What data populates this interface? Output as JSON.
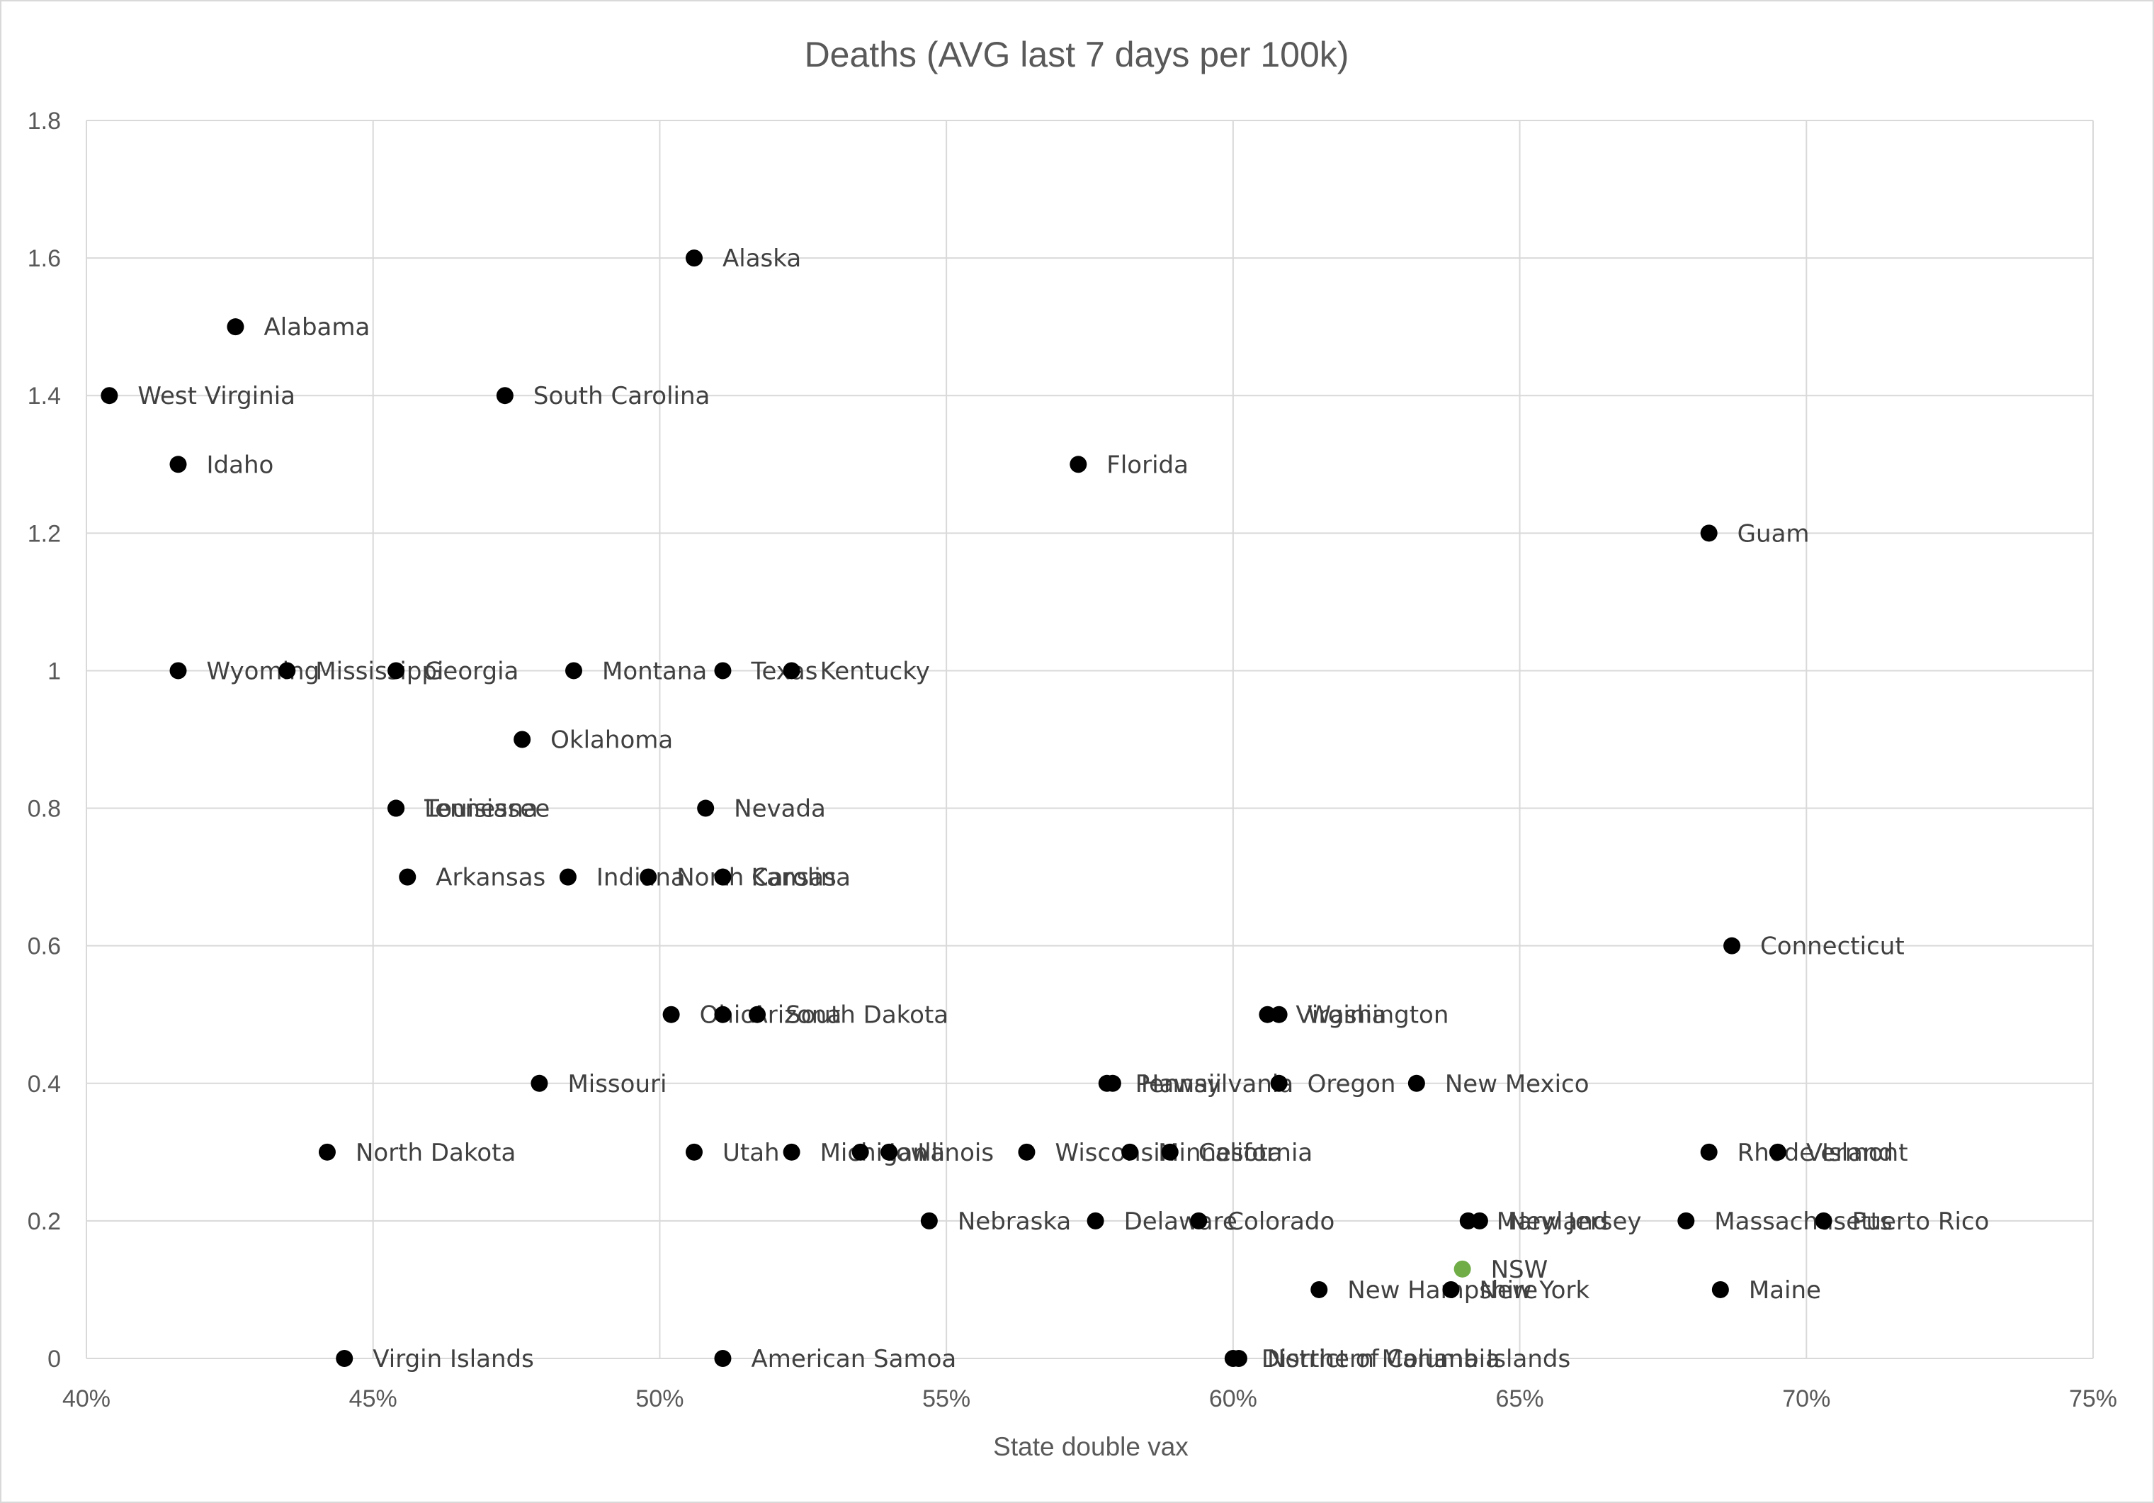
{
  "chart_data": {
    "type": "scatter",
    "title": "Deaths (AVG last 7 days per 100k)",
    "xlabel": "State double vax",
    "ylabel": "",
    "xlim": [
      0.4,
      0.75
    ],
    "ylim": [
      0,
      1.8
    ],
    "x_ticks": [
      0.4,
      0.45,
      0.5,
      0.55,
      0.6,
      0.65,
      0.7,
      0.75
    ],
    "x_tick_labels": [
      "40%",
      "45%",
      "50%",
      "55%",
      "60%",
      "65%",
      "70%",
      "75%"
    ],
    "y_ticks": [
      0,
      0.2,
      0.4,
      0.6,
      0.8,
      1.0,
      1.2,
      1.4,
      1.6,
      1.8
    ],
    "y_tick_labels": [
      "0",
      "0.2",
      "0.4",
      "0.6",
      "0.8",
      "1",
      "1.2",
      "1.4",
      "1.6",
      "1.8"
    ],
    "grid": true,
    "colors": {
      "default": "#000000",
      "highlight": "#70ad47"
    },
    "points": [
      {
        "label": "Alaska",
        "x": 0.506,
        "y": 1.6
      },
      {
        "label": "Alabama",
        "x": 0.426,
        "y": 1.5
      },
      {
        "label": "West Virginia",
        "x": 0.404,
        "y": 1.4
      },
      {
        "label": "South Carolina",
        "x": 0.473,
        "y": 1.4
      },
      {
        "label": "Idaho",
        "x": 0.416,
        "y": 1.3
      },
      {
        "label": "Florida",
        "x": 0.573,
        "y": 1.3
      },
      {
        "label": "Guam",
        "x": 0.683,
        "y": 1.2
      },
      {
        "label": "Wyoming",
        "x": 0.416,
        "y": 1.0
      },
      {
        "label": "Mississippi",
        "x": 0.435,
        "y": 1.0
      },
      {
        "label": "Georgia",
        "x": 0.454,
        "y": 1.0
      },
      {
        "label": "Montana",
        "x": 0.485,
        "y": 1.0
      },
      {
        "label": "Texas",
        "x": 0.511,
        "y": 1.0
      },
      {
        "label": "Kentucky",
        "x": 0.523,
        "y": 1.0
      },
      {
        "label": "Oklahoma",
        "x": 0.476,
        "y": 0.9
      },
      {
        "label": "Tennessee",
        "x": 0.454,
        "y": 0.8
      },
      {
        "label": "Louisiana",
        "x": 0.454,
        "y": 0.8
      },
      {
        "label": "Nevada",
        "x": 0.508,
        "y": 0.8
      },
      {
        "label": "Arkansas",
        "x": 0.456,
        "y": 0.7
      },
      {
        "label": "Indiana",
        "x": 0.484,
        "y": 0.7
      },
      {
        "label": "North Carolina",
        "x": 0.498,
        "y": 0.7
      },
      {
        "label": "Kansas",
        "x": 0.511,
        "y": 0.7
      },
      {
        "label": "Connecticut",
        "x": 0.687,
        "y": 0.6
      },
      {
        "label": "Ohio",
        "x": 0.502,
        "y": 0.5
      },
      {
        "label": "Arizona",
        "x": 0.511,
        "y": 0.5
      },
      {
        "label": "South Dakota",
        "x": 0.517,
        "y": 0.5
      },
      {
        "label": "Virginia",
        "x": 0.606,
        "y": 0.5
      },
      {
        "label": "Washington",
        "x": 0.608,
        "y": 0.5
      },
      {
        "label": "Missouri",
        "x": 0.479,
        "y": 0.4
      },
      {
        "label": "Pennsylvania",
        "x": 0.578,
        "y": 0.4
      },
      {
        "label": "Hawaii",
        "x": 0.579,
        "y": 0.4
      },
      {
        "label": "Oregon",
        "x": 0.608,
        "y": 0.4
      },
      {
        "label": "New Mexico",
        "x": 0.632,
        "y": 0.4
      },
      {
        "label": "North Dakota",
        "x": 0.442,
        "y": 0.3
      },
      {
        "label": "Utah",
        "x": 0.506,
        "y": 0.3
      },
      {
        "label": "Michigan",
        "x": 0.523,
        "y": 0.3
      },
      {
        "label": "Iowa",
        "x": 0.535,
        "y": 0.3
      },
      {
        "label": "Illinois",
        "x": 0.54,
        "y": 0.3
      },
      {
        "label": "Wisconsin",
        "x": 0.564,
        "y": 0.3
      },
      {
        "label": "Minnesota",
        "x": 0.582,
        "y": 0.3
      },
      {
        "label": "California",
        "x": 0.589,
        "y": 0.3
      },
      {
        "label": "Rhode Island",
        "x": 0.683,
        "y": 0.3
      },
      {
        "label": "Vermont",
        "x": 0.695,
        "y": 0.3
      },
      {
        "label": "Nebraska",
        "x": 0.547,
        "y": 0.2
      },
      {
        "label": "Delaware",
        "x": 0.576,
        "y": 0.2
      },
      {
        "label": "Colorado",
        "x": 0.594,
        "y": 0.2
      },
      {
        "label": "Maryland",
        "x": 0.641,
        "y": 0.2
      },
      {
        "label": "New Jersey",
        "x": 0.643,
        "y": 0.2
      },
      {
        "label": "Massachusetts",
        "x": 0.679,
        "y": 0.2
      },
      {
        "label": "Puerto Rico",
        "x": 0.703,
        "y": 0.2
      },
      {
        "label": "NSW",
        "x": 0.64,
        "y": 0.13,
        "highlight": true
      },
      {
        "label": "New Hampshire",
        "x": 0.615,
        "y": 0.1
      },
      {
        "label": "New York",
        "x": 0.638,
        "y": 0.1
      },
      {
        "label": "Maine",
        "x": 0.685,
        "y": 0.1
      },
      {
        "label": "Virgin Islands",
        "x": 0.445,
        "y": 0.0
      },
      {
        "label": "American Samoa",
        "x": 0.511,
        "y": 0.0
      },
      {
        "label": "District of Columbia",
        "x": 0.6,
        "y": 0.0
      },
      {
        "label": "Northern Mariana Islands",
        "x": 0.601,
        "y": 0.0
      }
    ]
  }
}
